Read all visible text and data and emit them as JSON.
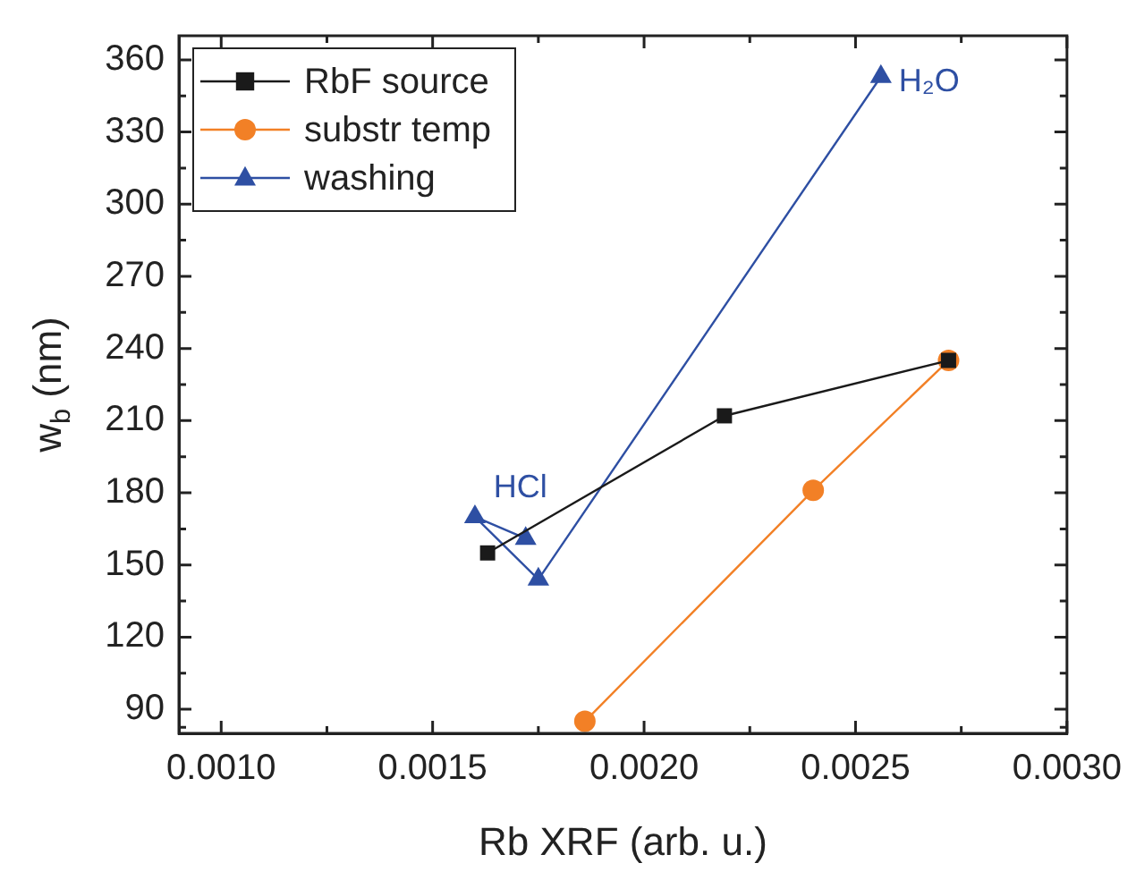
{
  "chart_data": {
    "type": "line",
    "xlabel": "Rb XRF (arb. u.)",
    "ylabel": "w$_{b}$ (nm)",
    "xlim": [
      0.0009,
      0.003
    ],
    "ylim": [
      80,
      370
    ],
    "xticks": [
      {
        "value": 0.001,
        "label": "0.0010"
      },
      {
        "value": 0.00125,
        "label": null
      },
      {
        "value": 0.0015,
        "label": "0.0015"
      },
      {
        "value": 0.00175,
        "label": null
      },
      {
        "value": 0.002,
        "label": "0.0020"
      },
      {
        "value": 0.00225,
        "label": null
      },
      {
        "value": 0.0025,
        "label": "0.0025"
      },
      {
        "value": 0.00275,
        "label": null
      },
      {
        "value": 0.003,
        "label": "0.0030"
      }
    ],
    "yticks": [
      {
        "value": 82.5,
        "label": null
      },
      90,
      {
        "value": 105,
        "label": null
      },
      120,
      {
        "value": 135,
        "label": null
      },
      150,
      {
        "value": 165,
        "label": null
      },
      180,
      {
        "value": 195,
        "label": null
      },
      210,
      {
        "value": 225,
        "label": null
      },
      240,
      {
        "value": 255,
        "label": null
      },
      270,
      {
        "value": 285,
        "label": null
      },
      300,
      {
        "value": 315,
        "label": null
      },
      330,
      {
        "value": 345,
        "label": null
      },
      360
    ],
    "grid": false,
    "legend": "top left",
    "line_style": "solid",
    "series": [
      {
        "name": "RbF source",
        "color": "#1a1a1a",
        "marker": "square",
        "x": [
          0.00163,
          0.00219,
          0.00272
        ],
        "values": [
          155,
          212,
          235
        ]
      },
      {
        "name": "substr temp",
        "color": "#f28026",
        "marker": "circle",
        "x": [
          0.00186,
          0.0024,
          0.00272
        ],
        "values": [
          85,
          181,
          235
        ]
      },
      {
        "name": "washing",
        "color": "#2e4fa3",
        "marker": "triangle",
        "x": [
          0.00172,
          0.0016,
          0.00175,
          0.00256
        ],
        "values": [
          161,
          170,
          144,
          353
        ]
      }
    ],
    "annotations": [
      {
        "text": "HCl",
        "x": 0.00172,
        "y": 161
      },
      {
        "text": "H₂O",
        "x": 0.00256,
        "y": 353
      }
    ]
  }
}
